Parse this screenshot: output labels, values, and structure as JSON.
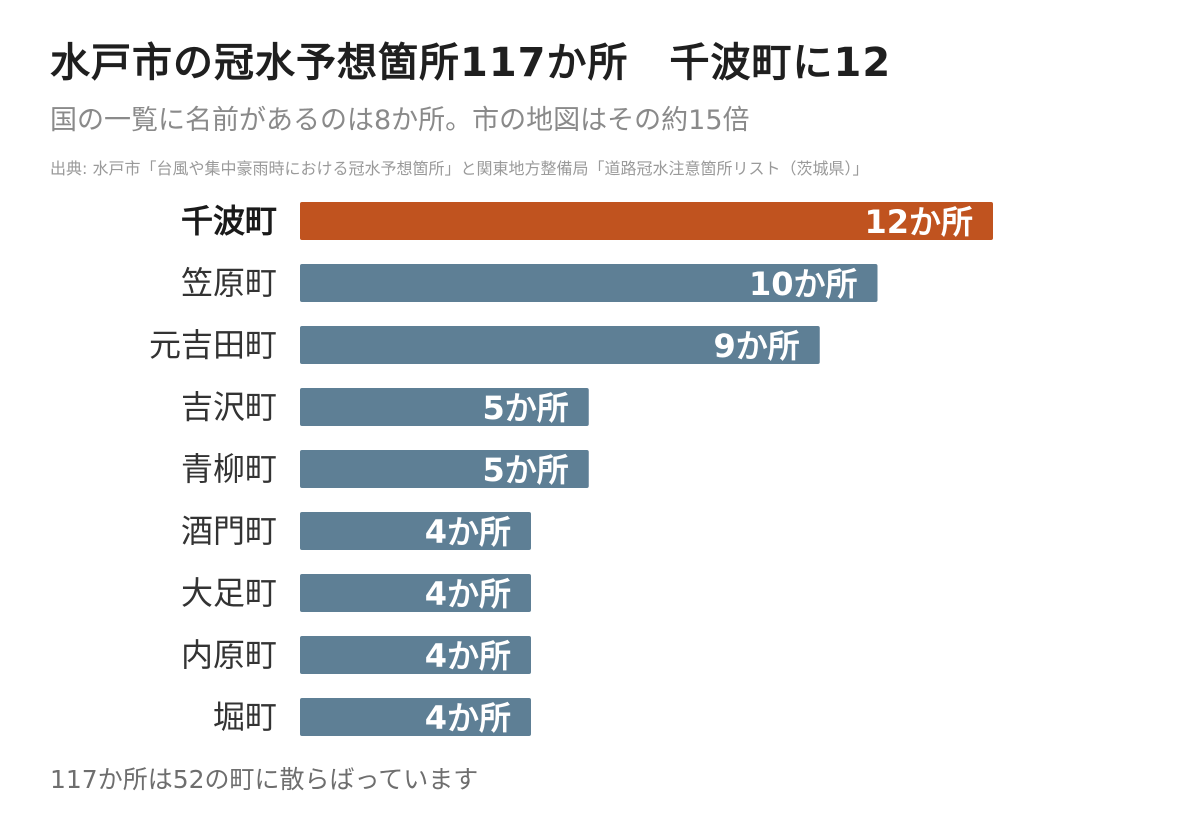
{
  "title": "水戸市の冠水予想箇所117か所　千波町に12",
  "subtitle": "国の一覧に名前があるのは8か所。市の地図はその約15倍",
  "source": "出典: 水戸市「台風や集中豪雨時における冠水予想箇所」と関東地方整備局「道路冠水注意箇所リスト（茨城県）」",
  "footnote": "117か所は52の町に散らばっています",
  "colors": {
    "highlight": "#c0531f",
    "bar": "#5e7f95"
  },
  "chart_data": {
    "type": "bar",
    "orientation": "horizontal",
    "categories": [
      "千波町",
      "笠原町",
      "元吉田町",
      "吉沢町",
      "青柳町",
      "酒門町",
      "大足町",
      "内原町",
      "堀町"
    ],
    "values": [
      12,
      10,
      9,
      5,
      5,
      4,
      4,
      4,
      4
    ],
    "value_labels": [
      "12か所",
      "10か所",
      "9か所",
      "5か所",
      "5か所",
      "4か所",
      "4か所",
      "4か所",
      "4か所"
    ],
    "highlight": [
      "千波町"
    ],
    "xlim": [
      0,
      12
    ],
    "grid": false,
    "legend": "none"
  }
}
